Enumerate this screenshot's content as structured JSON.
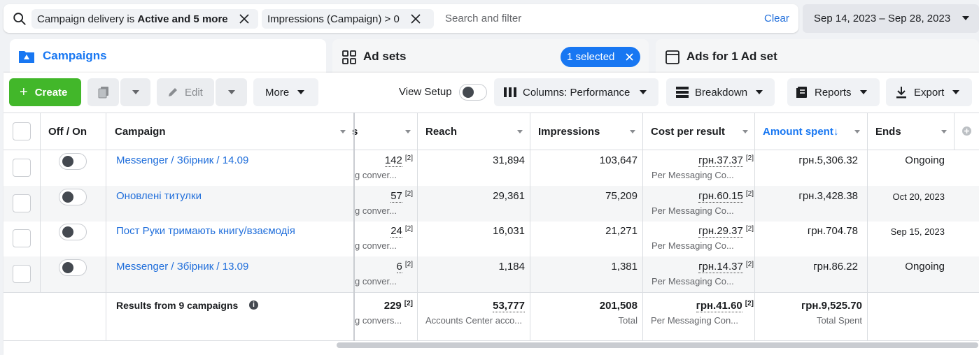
{
  "filters": {
    "chip1_text": "Campaign delivery is ",
    "chip1_bold": "Active and 5 more",
    "chip2_text": "Impressions (Campaign) > 0",
    "search_placeholder": "Search and filter",
    "clear": "Clear",
    "date_range": "Sep 14, 2023 – Sep 28, 2023"
  },
  "tabs": {
    "campaigns": "Campaigns",
    "adsets": "Ad sets",
    "selected": "1 selected",
    "ads": "Ads for 1 Ad set"
  },
  "toolbar": {
    "create": "Create",
    "edit": "Edit",
    "more": "More",
    "view_setup": "View Setup",
    "columns": "Columns: Performance",
    "breakdown": "Breakdown",
    "reports": "Reports",
    "export": "Export"
  },
  "columns": {
    "offon": "Off / On",
    "campaign": "Campaign",
    "results_suffix": "s",
    "reach": "Reach",
    "impressions": "Impressions",
    "cost_per_result": "Cost per result",
    "amount_spent": "Amount spent",
    "ends": "Ends"
  },
  "rows": [
    {
      "campaign": "Messenger / Збірник / 14.09",
      "results": "142",
      "results_sub": "g conver...",
      "reach": "31,894",
      "impressions": "103,647",
      "cpr": "грн.37.37",
      "cpr_sub": "Per Messaging Co...",
      "spent": "грн.5,306.32",
      "ends": "Ongoing"
    },
    {
      "campaign": "Оновлені титулки",
      "results": "57",
      "results_sub": "g conver...",
      "reach": "29,361",
      "impressions": "75,209",
      "cpr": "грн.60.15",
      "cpr_sub": "Per Messaging Co...",
      "spent": "грн.3,428.38",
      "ends": "Oct 20, 2023"
    },
    {
      "campaign": "Пост Руки тримають книгу/взаємодія",
      "results": "24",
      "results_sub": "g conver...",
      "reach": "16,031",
      "impressions": "21,271",
      "cpr": "грн.29.37",
      "cpr_sub": "Per Messaging Co...",
      "spent": "грн.704.78",
      "ends": "Sep 15, 2023"
    },
    {
      "campaign": "Messenger / Збірник / 13.09",
      "results": "6",
      "results_sub": "g conver...",
      "reach": "1,184",
      "impressions": "1,381",
      "cpr": "грн.14.37",
      "cpr_sub": "Per Messaging Co...",
      "spent": "грн.86.22",
      "ends": "Ongoing"
    }
  ],
  "footnote": "[2]",
  "totals": {
    "label": "Results from 9 campaigns",
    "results": "229",
    "results_sub": "g convers...",
    "reach": "53,777",
    "reach_sub": "Accounts Center acco...",
    "impressions": "201,508",
    "impressions_sub": "Total",
    "cpr": "грн.41.60",
    "cpr_sub": "Per Messaging Con...",
    "spent": "грн.9,525.70",
    "spent_sub": "Total Spent"
  },
  "colors": {
    "accent": "#1877f2",
    "link": "#216fdb",
    "create": "#42b72a"
  }
}
